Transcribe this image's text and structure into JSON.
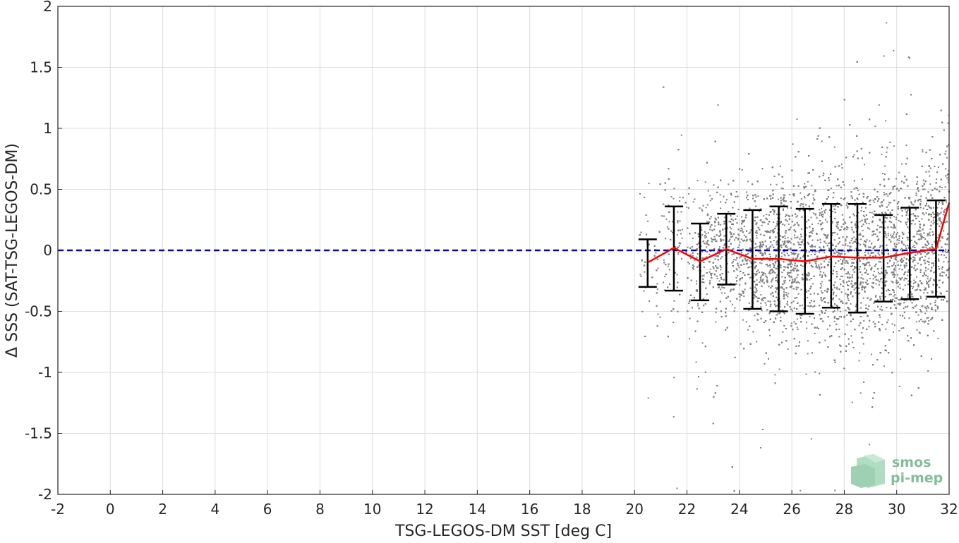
{
  "chart_data": {
    "type": "scatter",
    "xlabel": "TSG-LEGOS-DM SST [deg C]",
    "ylabel": "Δ SSS (SAT-TSG-LEGOS-DM)",
    "xlim": [
      -2,
      32
    ],
    "ylim": [
      -2,
      2
    ],
    "xticks": [
      -2,
      0,
      2,
      4,
      6,
      8,
      10,
      12,
      14,
      16,
      18,
      20,
      22,
      24,
      26,
      28,
      30,
      32
    ],
    "yticks": [
      -2,
      -1.5,
      -1,
      -0.5,
      0,
      0.5,
      1,
      1.5,
      2
    ],
    "grid": true,
    "colors": {
      "scatter": "#808080",
      "mean_line": "#ff0000",
      "zero_line": "#0000dd",
      "error_bars": "#000000",
      "logo": "#5aa878"
    },
    "scatter_cloud": {
      "description_free": true,
      "x_range": [
        20.2,
        32
      ],
      "y_range": [
        -2,
        2
      ]
    },
    "zero_line_y": 0,
    "binned": {
      "x": [
        20.5,
        21.5,
        22.5,
        23.5,
        24.5,
        25.5,
        26.5,
        27.5,
        28.5,
        29.5,
        30.5,
        31.5,
        32
      ],
      "mean": [
        -0.1,
        0.02,
        -0.09,
        0.01,
        -0.07,
        -0.07,
        -0.09,
        -0.05,
        -0.06,
        -0.06,
        -0.02,
        0.01,
        0.39
      ],
      "upper": [
        0.09,
        0.36,
        0.22,
        0.3,
        0.33,
        0.36,
        0.34,
        0.38,
        0.38,
        0.29,
        0.35,
        0.41,
        null
      ],
      "lower": [
        -0.3,
        -0.33,
        -0.41,
        -0.28,
        -0.48,
        -0.5,
        -0.52,
        -0.47,
        -0.51,
        -0.42,
        -0.4,
        -0.38,
        null
      ]
    }
  },
  "logo": {
    "line1": "smos",
    "line2": "pi-mep"
  }
}
